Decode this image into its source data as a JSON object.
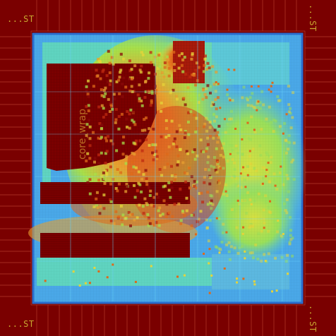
{
  "corner_labels": {
    "top_left": "...ST",
    "top_right": "...ST",
    "bottom_left": "...ST",
    "bottom_right": "...ST"
  },
  "core_label": "core_wrap",
  "colors": {
    "io_ring": "#7a0000",
    "io_lines": "#b43a2a",
    "core_low": "#4aa8e8",
    "core_cool": "#5fd4c0",
    "core_mid": "#8ae05a",
    "core_warm": "#e8d63a",
    "core_hot": "#e06a1a",
    "core_max": "#7a0000",
    "label_gold": "#c8a830"
  }
}
